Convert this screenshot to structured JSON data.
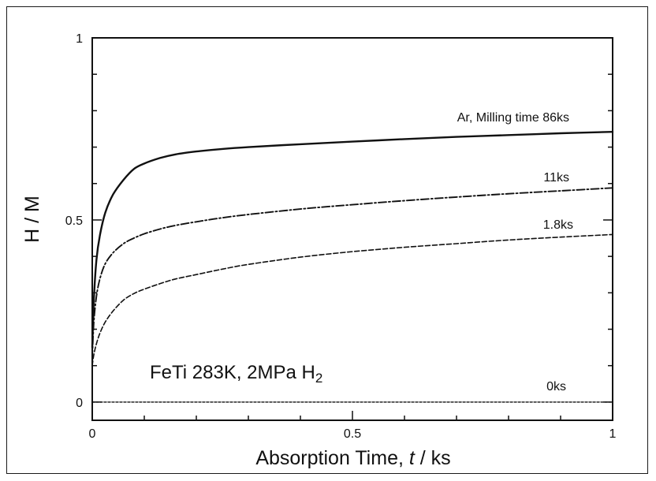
{
  "chart_data": {
    "type": "line",
    "title": "",
    "xlabel_main": "Absorption Time, ",
    "xlabel_symbol": "t",
    "xlabel_unit": " / ks",
    "ylabel": "H / M",
    "xlim": [
      0,
      1
    ],
    "ylim": [
      -0.05,
      1
    ],
    "grid": false,
    "x_ticks": [
      {
        "value": 0,
        "label": "0"
      },
      {
        "value": 0.5,
        "label": "0.5"
      },
      {
        "value": 1,
        "label": "1"
      }
    ],
    "y_ticks": [
      {
        "value": 0,
        "label": "0"
      },
      {
        "value": 0.5,
        "label": "0.5"
      },
      {
        "value": 1,
        "label": "1"
      }
    ],
    "annotation": {
      "text": "FeTi 283K, 2MPa H",
      "subscript": "2"
    },
    "series": [
      {
        "label": "Ar, Milling time 86ks",
        "style": "solid",
        "x": [
          0,
          0.003,
          0.008,
          0.015,
          0.025,
          0.04,
          0.06,
          0.08,
          0.1,
          0.13,
          0.16,
          0.2,
          0.25,
          0.3,
          0.4,
          0.5,
          0.6,
          0.7,
          0.8,
          0.9,
          1.0
        ],
        "y": [
          0.15,
          0.28,
          0.39,
          0.46,
          0.52,
          0.57,
          0.61,
          0.64,
          0.655,
          0.67,
          0.68,
          0.688,
          0.695,
          0.7,
          0.708,
          0.715,
          0.722,
          0.728,
          0.733,
          0.738,
          0.742
        ]
      },
      {
        "label": "11ks",
        "style": "dashdot",
        "x": [
          0,
          0.003,
          0.008,
          0.015,
          0.025,
          0.04,
          0.06,
          0.08,
          0.1,
          0.13,
          0.16,
          0.2,
          0.25,
          0.3,
          0.4,
          0.5,
          0.6,
          0.7,
          0.8,
          0.9,
          1.0
        ],
        "y": [
          0.12,
          0.22,
          0.29,
          0.34,
          0.38,
          0.41,
          0.435,
          0.45,
          0.462,
          0.475,
          0.485,
          0.495,
          0.506,
          0.515,
          0.53,
          0.542,
          0.553,
          0.563,
          0.572,
          0.58,
          0.588
        ]
      },
      {
        "label": "1.8ks",
        "style": "dashed",
        "x": [
          0,
          0.003,
          0.008,
          0.015,
          0.025,
          0.04,
          0.06,
          0.08,
          0.1,
          0.13,
          0.16,
          0.2,
          0.25,
          0.3,
          0.4,
          0.5,
          0.6,
          0.7,
          0.8,
          0.9,
          1.0
        ],
        "y": [
          0.1,
          0.13,
          0.16,
          0.19,
          0.22,
          0.25,
          0.28,
          0.298,
          0.31,
          0.325,
          0.338,
          0.35,
          0.365,
          0.378,
          0.398,
          0.413,
          0.425,
          0.435,
          0.445,
          0.453,
          0.46
        ]
      },
      {
        "label": "0ks",
        "style": "dotted",
        "x": [
          0,
          1
        ],
        "y": [
          0,
          0
        ]
      }
    ]
  }
}
